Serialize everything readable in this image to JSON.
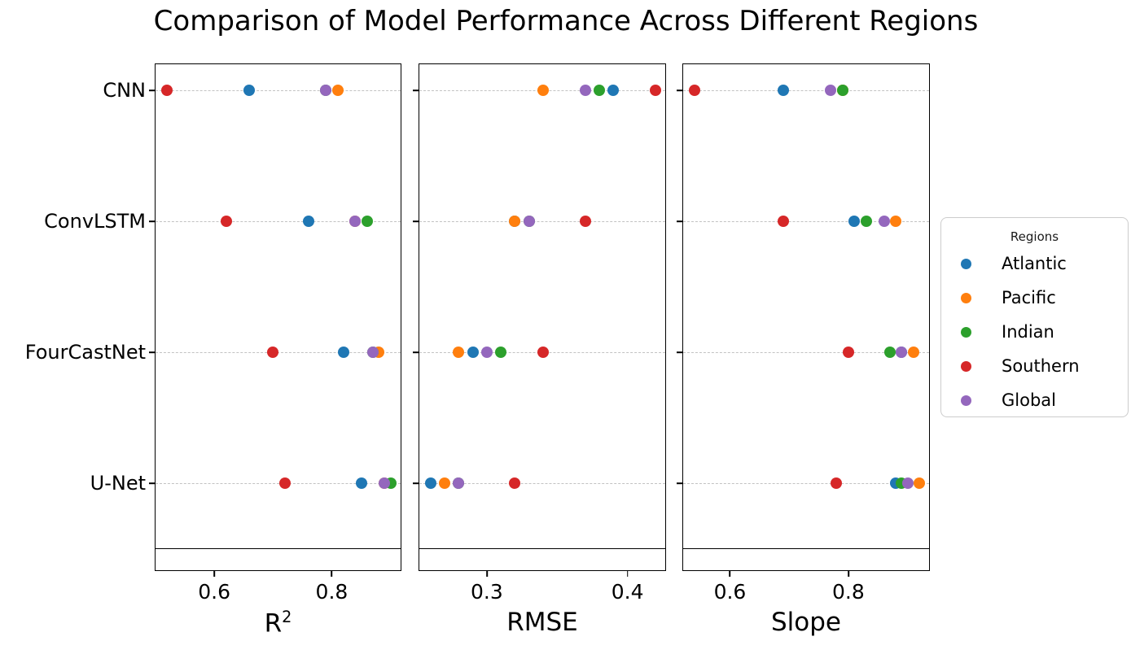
{
  "title": "Comparison of Model Performance Across Different Regions",
  "legend": {
    "title": "Regions",
    "position": "center right",
    "entries": [
      {
        "label": "Atlantic",
        "color": "#1f77b4"
      },
      {
        "label": "Pacific",
        "color": "#ff7f0e"
      },
      {
        "label": "Indian",
        "color": "#2ca02c"
      },
      {
        "label": "Southern",
        "color": "#d62728"
      },
      {
        "label": "Global",
        "color": "#9467bd"
      }
    ]
  },
  "chart_data": [
    {
      "type": "scatter",
      "xlabel": "R²",
      "categories": [
        "CNN",
        "ConvLSTM",
        "FourCastNet",
        "U-Net"
      ],
      "xlim": [
        0.5,
        0.92
      ],
      "xticks": [
        0.6,
        0.8
      ],
      "xtick_labels": [
        "0.6",
        "0.8"
      ],
      "grid": "horizontal-dashed",
      "series": [
        {
          "name": "Atlantic",
          "color": "#1f77b4",
          "values": [
            0.66,
            0.76,
            0.82,
            0.85
          ]
        },
        {
          "name": "Pacific",
          "color": "#ff7f0e",
          "values": [
            0.81,
            0.84,
            0.88,
            0.89
          ]
        },
        {
          "name": "Indian",
          "color": "#2ca02c",
          "values": [
            0.79,
            0.86,
            0.87,
            0.9
          ]
        },
        {
          "name": "Southern",
          "color": "#d62728",
          "values": [
            0.52,
            0.62,
            0.7,
            0.72
          ]
        },
        {
          "name": "Global",
          "color": "#9467bd",
          "values": [
            0.79,
            0.84,
            0.87,
            0.89
          ]
        }
      ]
    },
    {
      "type": "scatter",
      "xlabel": "RMSE",
      "categories": [
        "CNN",
        "ConvLSTM",
        "FourCastNet",
        "U-Net"
      ],
      "xlim": [
        0.252,
        0.428
      ],
      "xticks": [
        0.3,
        0.4
      ],
      "xtick_labels": [
        "0.3",
        "0.4"
      ],
      "grid": "horizontal-dashed",
      "series": [
        {
          "name": "Atlantic",
          "color": "#1f77b4",
          "values": [
            0.39,
            0.32,
            0.29,
            0.26
          ]
        },
        {
          "name": "Pacific",
          "color": "#ff7f0e",
          "values": [
            0.34,
            0.32,
            0.28,
            0.27
          ]
        },
        {
          "name": "Indian",
          "color": "#2ca02c",
          "values": [
            0.38,
            0.33,
            0.31,
            0.28
          ]
        },
        {
          "name": "Southern",
          "color": "#d62728",
          "values": [
            0.42,
            0.37,
            0.34,
            0.32
          ]
        },
        {
          "name": "Global",
          "color": "#9467bd",
          "values": [
            0.37,
            0.33,
            0.3,
            0.28
          ]
        }
      ]
    },
    {
      "type": "scatter",
      "xlabel": "Slope",
      "categories": [
        "CNN",
        "ConvLSTM",
        "FourCastNet",
        "U-Net"
      ],
      "xlim": [
        0.521,
        0.939
      ],
      "xticks": [
        0.6,
        0.8
      ],
      "xtick_labels": [
        "0.6",
        "0.8"
      ],
      "grid": "horizontal-dashed",
      "series": [
        {
          "name": "Atlantic",
          "color": "#1f77b4",
          "values": [
            0.69,
            0.81,
            0.89,
            0.88
          ]
        },
        {
          "name": "Pacific",
          "color": "#ff7f0e",
          "values": [
            0.79,
            0.88,
            0.91,
            0.92
          ]
        },
        {
          "name": "Indian",
          "color": "#2ca02c",
          "values": [
            0.79,
            0.83,
            0.87,
            0.89
          ]
        },
        {
          "name": "Southern",
          "color": "#d62728",
          "values": [
            0.54,
            0.69,
            0.8,
            0.78
          ]
        },
        {
          "name": "Global",
          "color": "#9467bd",
          "values": [
            0.77,
            0.86,
            0.89,
            0.9
          ]
        }
      ]
    }
  ]
}
